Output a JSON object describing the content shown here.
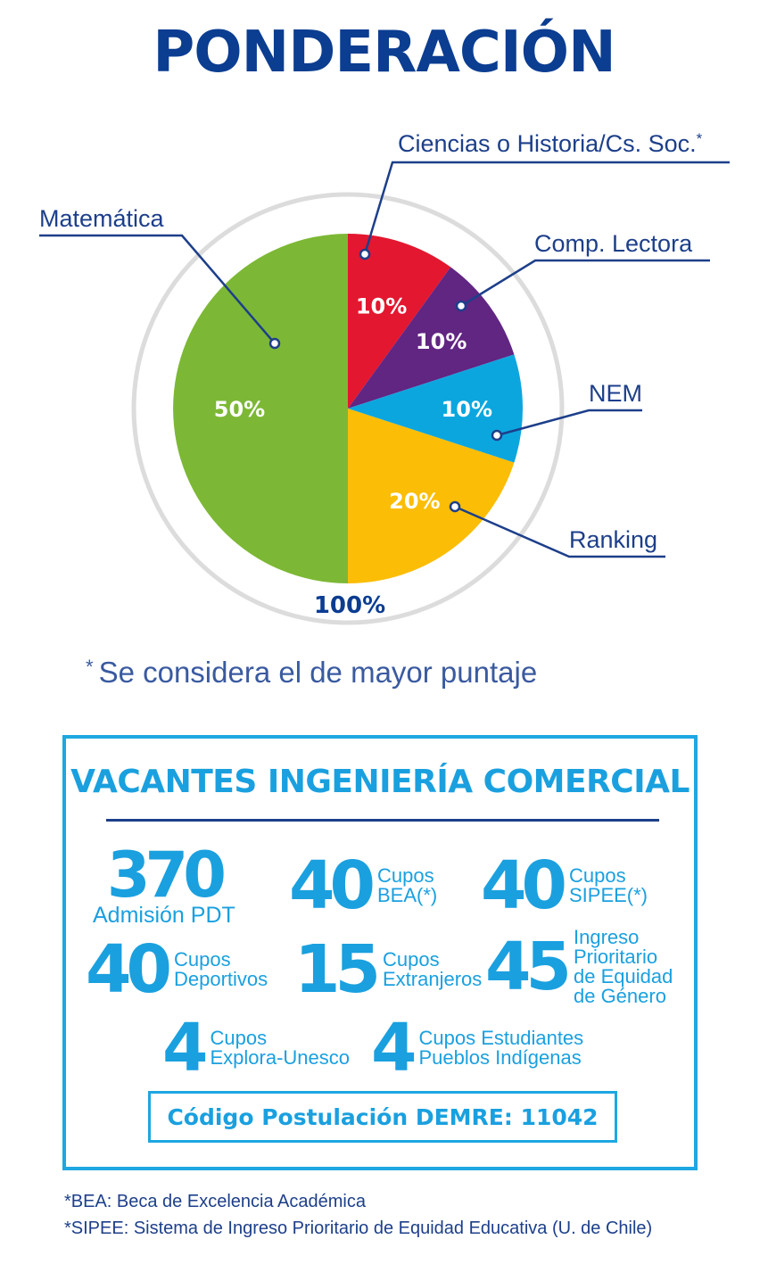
{
  "title": "PONDERACIÓN",
  "chart_data": {
    "type": "pie",
    "title": "PONDERACIÓN",
    "total_label": "100%",
    "slices": [
      {
        "name": "Ciencias o Historia/Cs. Soc.",
        "marker": "*",
        "value": 10,
        "label": "10%",
        "color": "#e3172f"
      },
      {
        "name": "Comp. Lectora",
        "value": 10,
        "label": "10%",
        "color": "#612582"
      },
      {
        "name": "NEM",
        "value": 10,
        "label": "10%",
        "color": "#0ca6df"
      },
      {
        "name": "Ranking",
        "value": 20,
        "label": "20%",
        "color": "#fbbd05"
      },
      {
        "name": "Matemática",
        "value": 50,
        "label": "50%",
        "color": "#7cb835"
      }
    ]
  },
  "footnote_main": {
    "asterisk": "*",
    "text": "Se considera el de mayor puntaje"
  },
  "vacantes": {
    "title": "VACANTES INGENIERÍA COMERCIAL",
    "items": [
      {
        "number": "370",
        "lines": [
          "Admisión PDT"
        ]
      },
      {
        "number": "40",
        "lines": [
          "Cupos",
          "BEA(*)"
        ]
      },
      {
        "number": "40",
        "lines": [
          "Cupos",
          "SIPEE(*)"
        ]
      },
      {
        "number": "40",
        "lines": [
          "Cupos",
          "Deportivos"
        ]
      },
      {
        "number": "15",
        "lines": [
          "Cupos",
          "Extranjeros"
        ]
      },
      {
        "number": "45",
        "lines": [
          "Ingreso",
          "Prioritario",
          "de Equidad",
          "de Género"
        ]
      },
      {
        "number": "4",
        "lines": [
          "Cupos",
          "Explora-Unesco"
        ]
      },
      {
        "number": "4",
        "lines": [
          "Cupos Estudiantes",
          "Pueblos Indígenas"
        ]
      }
    ],
    "code": "Código Postulación DEMRE: 11042"
  },
  "footnotes": [
    "*BEA: Beca de Excelencia Académica",
    "*SIPEE: Sistema de Ingreso Prioritario de Equidad Educativa (U. de Chile)"
  ],
  "colors": {
    "navy": "#0b3d91",
    "cyan": "#1aa0df",
    "ring": "#dcdcdc"
  }
}
